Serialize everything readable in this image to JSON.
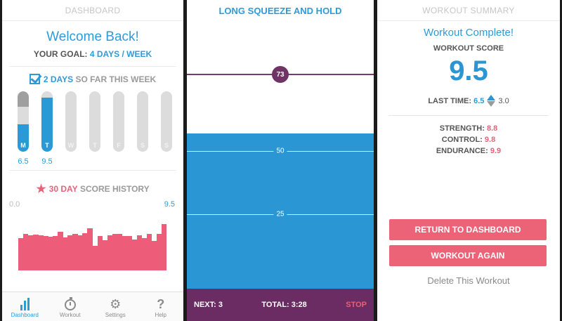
{
  "dashboard": {
    "header": "DASHBOARD",
    "welcome": "Welcome Back!",
    "goal_label": "YOUR GOAL:",
    "goal_value": "4 DAYS / WEEK",
    "days_count": "2 DAYS",
    "days_suffix": "SO FAR THIS WEEK",
    "week": [
      {
        "day": "M",
        "value": "6.5",
        "fill": 0.45,
        "top": 0.25
      },
      {
        "day": "T",
        "value": "9.5",
        "fill": 0.9,
        "top": 0.0
      },
      {
        "day": "W",
        "value": "",
        "fill": 0,
        "top": 0
      },
      {
        "day": "T",
        "value": "",
        "fill": 0,
        "top": 0
      },
      {
        "day": "F",
        "value": "",
        "fill": 0,
        "top": 0
      },
      {
        "day": "S",
        "value": "",
        "fill": 0,
        "top": 0
      },
      {
        "day": "S",
        "value": "",
        "fill": 0,
        "top": 0
      }
    ],
    "history_highlight": "30 DAY",
    "history_suffix": "SCORE HISTORY",
    "history_min_label": "0.0",
    "history_max_label": "9.5",
    "history_values": [
      0.55,
      0.62,
      0.6,
      0.61,
      0.6,
      0.58,
      0.57,
      0.58,
      0.65,
      0.56,
      0.6,
      0.62,
      0.6,
      0.63,
      0.72,
      0.42,
      0.58,
      0.51,
      0.6,
      0.62,
      0.62,
      0.58,
      0.58,
      0.52,
      0.6,
      0.55,
      0.62,
      0.5,
      0.62,
      0.78
    ],
    "tabs": [
      {
        "label": "Dashboard",
        "icon": "bar-chart-icon",
        "active": true
      },
      {
        "label": "Workout",
        "icon": "stopwatch-icon",
        "active": false
      },
      {
        "label": "Settings",
        "icon": "gear-icon",
        "active": false
      },
      {
        "label": "Help",
        "icon": "question-icon",
        "active": false
      }
    ]
  },
  "exercise": {
    "header": "LONG SQUEEZE AND HOLD",
    "current_value": "73",
    "current_level": 73,
    "line_50": "50",
    "line_25": "25",
    "fill_level": 58,
    "next": "NEXT: 3",
    "total": "TOTAL: 3:28",
    "stop": "STOP"
  },
  "summary": {
    "header": "WORKOUT SUMMARY",
    "complete": "Workout Complete!",
    "score_label": "WORKOUT SCORE",
    "score": "9.5",
    "last_time_label": "LAST TIME:",
    "last_time_value": "6.5",
    "delta": "3.0",
    "stats": [
      {
        "label": "STRENGTH:",
        "value": "8.8"
      },
      {
        "label": "CONTROL:",
        "value": "9.8"
      },
      {
        "label": "ENDURANCE:",
        "value": "9.9"
      }
    ],
    "return_button": "RETURN TO DASHBOARD",
    "again_button": "WORKOUT AGAIN",
    "delete_link": "Delete This Workout"
  },
  "colors": {
    "blue": "#2f9bd6",
    "pink": "#ec6277",
    "purple": "#6a2c62"
  }
}
